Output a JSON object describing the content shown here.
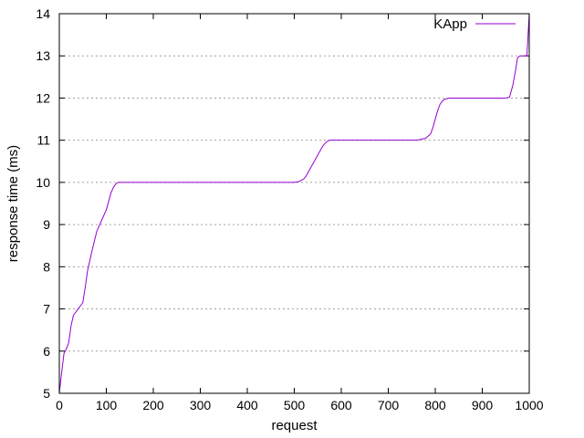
{
  "chart_data": {
    "type": "line",
    "title": "",
    "xlabel": "request",
    "ylabel": "response time (ms)",
    "xlim": [
      0,
      1000
    ],
    "ylim": [
      5,
      14
    ],
    "xticks": [
      0,
      100,
      200,
      300,
      400,
      500,
      600,
      700,
      800,
      900,
      1000
    ],
    "yticks": [
      5,
      6,
      7,
      8,
      9,
      10,
      11,
      12,
      13,
      14
    ],
    "grid": "horizontal dotted",
    "legend_position": "top-right",
    "series": [
      {
        "name": "KApp",
        "color": "#9400d3",
        "x": [
          0,
          5,
          10,
          15,
          20,
          25,
          30,
          40,
          50,
          55,
          60,
          70,
          80,
          90,
          100,
          105,
          110,
          115,
          120,
          125,
          130,
          200,
          300,
          400,
          500,
          510,
          520,
          525,
          530,
          540,
          550,
          560,
          565,
          570,
          575,
          580,
          600,
          700,
          760,
          770,
          780,
          790,
          795,
          800,
          805,
          810,
          815,
          820,
          830,
          840,
          900,
          950,
          958,
          965,
          970,
          975,
          980,
          985,
          990,
          995,
          1000
        ],
        "y": [
          5.0,
          5.5,
          5.95,
          6.05,
          6.2,
          6.6,
          6.85,
          7.0,
          7.15,
          7.5,
          7.9,
          8.4,
          8.85,
          9.1,
          9.35,
          9.55,
          9.75,
          9.88,
          9.96,
          10.0,
          10.0,
          10.0,
          10.0,
          10.0,
          10.0,
          10.02,
          10.08,
          10.15,
          10.25,
          10.45,
          10.65,
          10.85,
          10.92,
          10.97,
          11.0,
          11.0,
          11.0,
          11.0,
          11.0,
          11.02,
          11.05,
          11.15,
          11.3,
          11.5,
          11.7,
          11.85,
          11.93,
          11.97,
          12.0,
          12.0,
          12.0,
          12.0,
          12.02,
          12.3,
          12.6,
          12.95,
          13.0,
          13.0,
          13.0,
          13.0,
          14.0
        ]
      }
    ]
  }
}
